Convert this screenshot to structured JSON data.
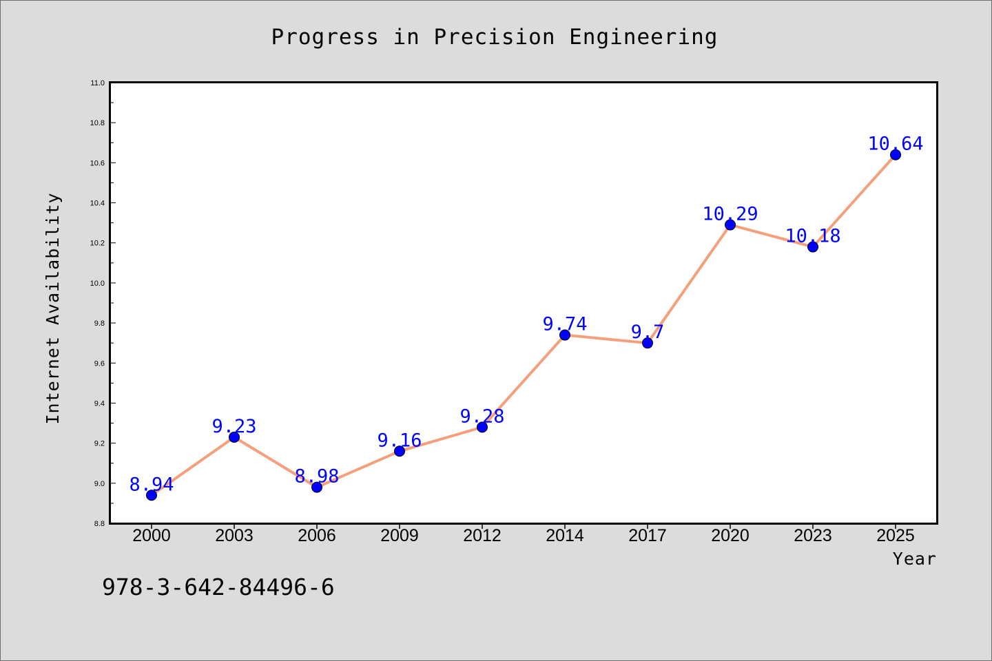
{
  "chart_data": {
    "type": "line",
    "title": "Progress in Precision Engineering",
    "xlabel": "Year",
    "ylabel": "Internet Availability",
    "categories": [
      "2000",
      "2003",
      "2006",
      "2009",
      "2012",
      "2014",
      "2017",
      "2020",
      "2023",
      "2025"
    ],
    "series": [
      {
        "values": [
          8.94,
          9.23,
          8.98,
          9.16,
          9.28,
          9.74,
          9.7,
          10.29,
          10.18,
          10.64
        ],
        "data_labels": [
          "8.94",
          "9.23",
          "8.98",
          "9.16",
          "9.28",
          "9.74",
          "9.7",
          "10.29",
          "10.18",
          "10.64"
        ],
        "line_color": "#f4a07c",
        "marker_color": "#0000ff"
      }
    ],
    "ylim": [
      8.8,
      11.0
    ],
    "yticks": [
      "8.8",
      "9.0",
      "9.2",
      "9.4",
      "9.6",
      "9.8",
      "10.0",
      "10.2",
      "10.4",
      "10.6",
      "10.8",
      "11.0"
    ],
    "grid": false,
    "legend": "none"
  },
  "footer": {
    "isbn": "978-3-642-84496-6"
  },
  "colors": {
    "background": "#dcdcdc",
    "plot_area": "#ffffff",
    "line": "#f4a07c",
    "marker": "#0000ff",
    "data_label": "#0000ff"
  }
}
